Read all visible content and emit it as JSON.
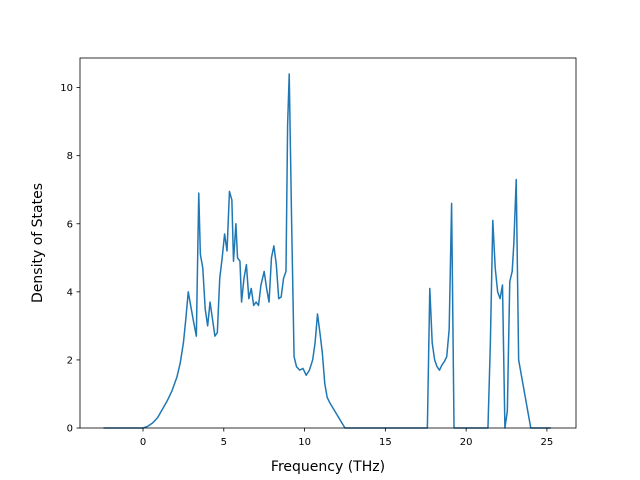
{
  "chart_data": {
    "type": "line",
    "title": "",
    "xlabel": "Frequency (THz)",
    "ylabel": "Density of States",
    "xlim": [
      -3.9,
      26.8
    ],
    "ylim": [
      0,
      10.87
    ],
    "xticks": [
      0,
      5,
      10,
      15,
      20,
      25
    ],
    "yticks": [
      0,
      2,
      4,
      6,
      8,
      10
    ],
    "grid": false,
    "legend": "none",
    "line_color": "#1f77b4",
    "series": [
      {
        "x": [
          -2.4,
          -1.5,
          -0.5,
          0.0,
          0.3,
          0.6,
          0.9,
          1.2,
          1.5,
          1.8,
          2.1,
          2.3,
          2.5,
          2.65,
          2.8,
          2.95,
          3.1,
          3.3,
          3.45,
          3.55,
          3.7,
          3.85,
          4.0,
          4.15,
          4.3,
          4.45,
          4.6,
          4.75,
          4.9,
          5.05,
          5.2,
          5.35,
          5.5,
          5.6,
          5.75,
          5.85,
          6.0,
          6.1,
          6.25,
          6.4,
          6.55,
          6.7,
          6.85,
          7.0,
          7.15,
          7.3,
          7.5,
          7.65,
          7.8,
          7.95,
          8.1,
          8.25,
          8.4,
          8.55,
          8.7,
          8.85,
          8.95,
          9.05,
          9.2,
          9.35,
          9.5,
          9.7,
          9.9,
          10.1,
          10.3,
          10.5,
          10.65,
          10.8,
          10.95,
          11.1,
          11.25,
          11.4,
          11.55,
          12.5,
          14.0,
          16.0,
          17.6,
          17.75,
          17.9,
          18.05,
          18.2,
          18.35,
          18.5,
          18.65,
          18.8,
          18.95,
          19.1,
          19.25,
          20.0,
          21.0,
          21.35,
          21.5,
          21.65,
          21.8,
          21.95,
          22.1,
          22.25,
          22.4,
          22.55,
          22.7,
          22.85,
          22.95,
          23.1,
          23.25,
          24.0,
          25.2
        ],
        "y": [
          0,
          0,
          0,
          0,
          0.05,
          0.15,
          0.3,
          0.55,
          0.8,
          1.1,
          1.5,
          1.9,
          2.5,
          3.2,
          4.0,
          3.6,
          3.2,
          2.7,
          6.9,
          5.1,
          4.7,
          3.5,
          3.0,
          3.7,
          3.2,
          2.7,
          2.8,
          4.4,
          5.0,
          5.7,
          5.2,
          6.95,
          6.7,
          4.9,
          6.0,
          5.0,
          4.9,
          3.7,
          4.4,
          4.8,
          3.8,
          4.1,
          3.6,
          3.7,
          3.6,
          4.2,
          4.6,
          4.1,
          3.7,
          5.0,
          5.35,
          4.8,
          3.8,
          3.85,
          4.4,
          4.6,
          8.9,
          10.4,
          6.0,
          2.1,
          1.8,
          1.7,
          1.75,
          1.55,
          1.7,
          2.0,
          2.5,
          3.35,
          2.8,
          2.2,
          1.3,
          0.9,
          0.75,
          0,
          0,
          0,
          0,
          4.1,
          2.5,
          2.0,
          1.8,
          1.7,
          1.85,
          1.95,
          2.1,
          2.9,
          6.6,
          0,
          0,
          0,
          0,
          2.5,
          6.1,
          4.7,
          4.0,
          3.8,
          4.2,
          0,
          0.5,
          4.3,
          4.6,
          5.4,
          7.3,
          2.0,
          0,
          0
        ]
      }
    ]
  }
}
